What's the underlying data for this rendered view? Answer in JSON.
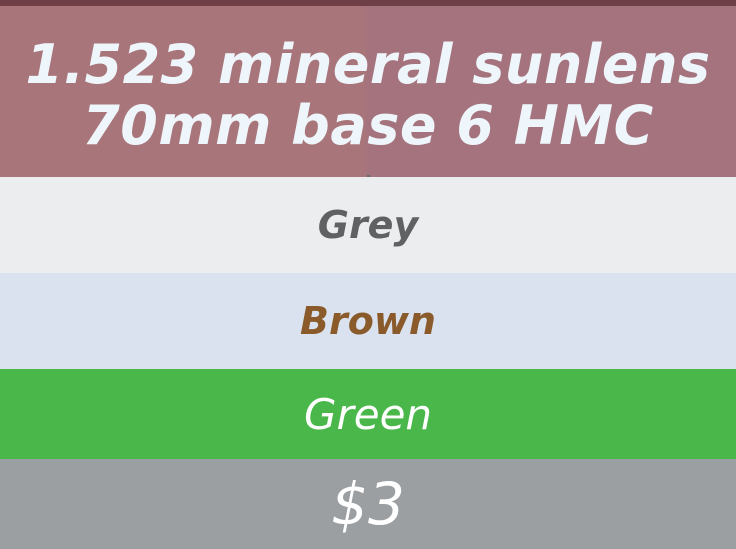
{
  "product": {
    "title_line_1": "1.523 mineral sunlens",
    "title_line_2": "70mm base 6 HMC"
  },
  "options": {
    "grey": "Grey",
    "brown": "Brown",
    "green": "Green"
  },
  "price": {
    "label": "$3"
  },
  "colors": {
    "header": "#a8757a",
    "grey_row": "#ecedef",
    "brown_row": "#d9e2ee",
    "green_row": "#49b749",
    "price_row": "#9c9fa2",
    "grey_text": "#5f6163",
    "brown_text": "#8a5a2b",
    "white_text": "#ffffff"
  }
}
